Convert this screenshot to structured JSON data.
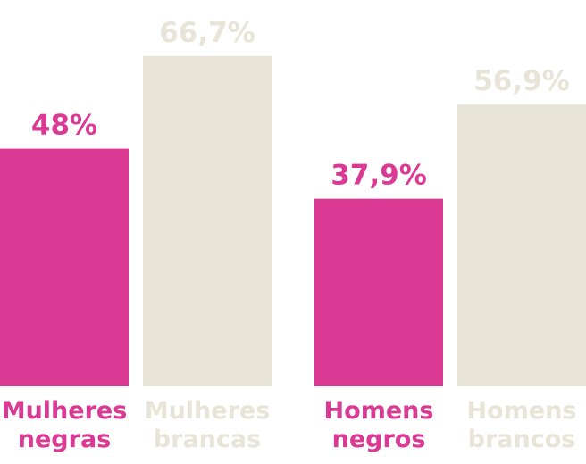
{
  "chart_data": {
    "type": "bar",
    "categories": [
      [
        "Mulheres",
        "negras"
      ],
      [
        "Mulheres",
        "brancas"
      ],
      [
        "Homens",
        "negros"
      ],
      [
        "Homens",
        "brancos"
      ]
    ],
    "values": [
      48,
      66.7,
      37.9,
      56.9
    ],
    "value_labels": [
      "48%",
      "66,7%",
      "37,9%",
      "56,9%"
    ],
    "colors": [
      "#db3a94",
      "#e8e5d8",
      "#db3a94",
      "#e8e5d8"
    ],
    "ylim": [
      0,
      100
    ],
    "grid": false,
    "title": "",
    "xlabel": "",
    "ylabel": ""
  }
}
